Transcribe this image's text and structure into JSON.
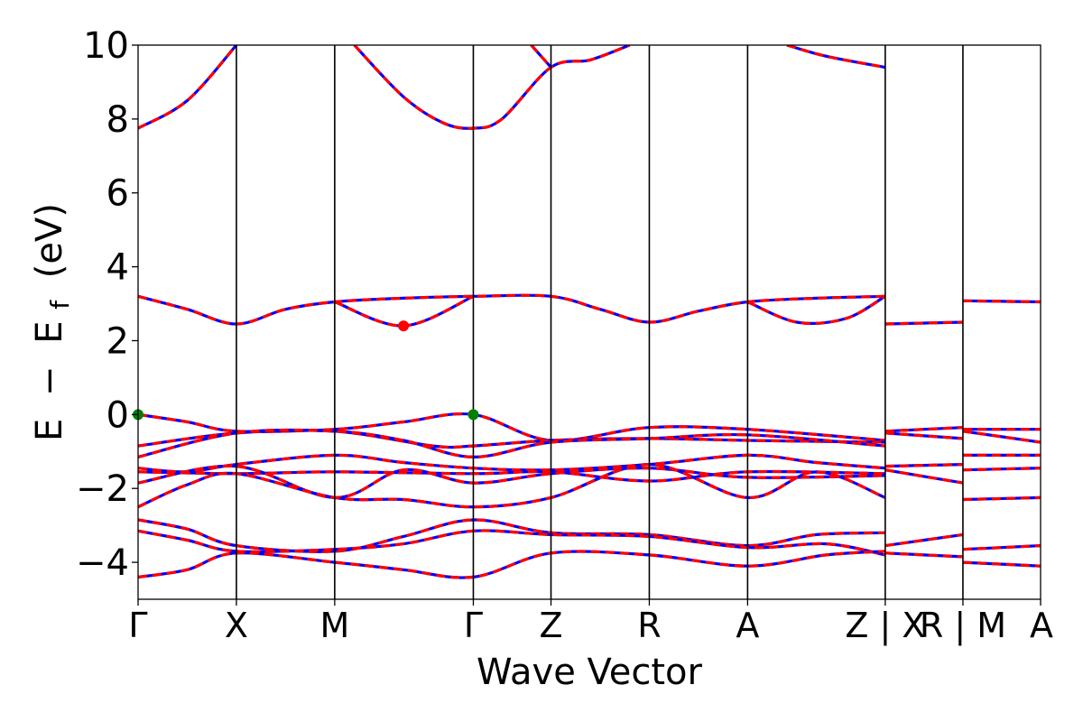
{
  "chart_data": {
    "type": "line",
    "title": "",
    "xlabel": "Wave Vector",
    "ylabel_parts": {
      "e": "E",
      "minus": "−",
      "ef_main": "E",
      "ef_sub": "f",
      "unit": "(eV)"
    },
    "ylim": [
      -5,
      10
    ],
    "yticks": [
      {
        "value": 10,
        "label": "10"
      },
      {
        "value": 8,
        "label": "8"
      },
      {
        "value": 6,
        "label": "6"
      },
      {
        "value": 4,
        "label": "4"
      },
      {
        "value": 2,
        "label": "2"
      },
      {
        "value": 0,
        "label": "0"
      },
      {
        "value": -2,
        "label": "−2"
      },
      {
        "value": -4,
        "label": "−4"
      }
    ],
    "kpoints": [
      {
        "label": "Γ",
        "x": 0
      },
      {
        "label": "X",
        "x": 1.0
      },
      {
        "label": "M",
        "x": 2.0
      },
      {
        "label": "Γ",
        "x": 3.41
      },
      {
        "label": "Z",
        "x": 4.2
      },
      {
        "label": "R",
        "x": 5.2
      },
      {
        "label": "A",
        "x": 6.2
      },
      {
        "label": "Z | X",
        "x": 7.6
      },
      {
        "label": "R | M",
        "x": 8.39
      },
      {
        "label": "A",
        "x": 9.18
      }
    ],
    "grid": false,
    "series_styles": [
      {
        "color": "#0000ff",
        "dashed": false
      },
      {
        "color": "#ff0000",
        "dashed": true
      }
    ],
    "markers": [
      {
        "x": 0.0,
        "y": 0.0,
        "color": "#008000"
      },
      {
        "x": 3.41,
        "y": 0.0,
        "color": "#008000"
      },
      {
        "x": 2.7,
        "y": 2.4,
        "color": "#ff0000"
      }
    ],
    "bands": [
      [
        [
          0,
          7.75
        ],
        [
          0.5,
          8.5
        ],
        [
          1.0,
          10.0
        ]
      ],
      [
        [
          2.2,
          10.0
        ],
        [
          2.7,
          8.6
        ],
        [
          3.1,
          7.9
        ],
        [
          3.41,
          7.75
        ],
        [
          3.7,
          8.0
        ],
        [
          4.2,
          9.4
        ],
        [
          4.6,
          9.6
        ],
        [
          5.0,
          10.0
        ]
      ],
      [
        [
          4.0,
          10.0
        ],
        [
          4.2,
          9.4
        ]
      ],
      [
        [
          6.6,
          10.0
        ],
        [
          7.0,
          9.7
        ],
        [
          7.6,
          9.4
        ]
      ],
      [
        [
          0,
          3.2
        ],
        [
          0.5,
          2.85
        ],
        [
          1.0,
          2.45
        ],
        [
          1.5,
          2.85
        ],
        [
          2.0,
          3.05
        ],
        [
          2.7,
          3.15
        ],
        [
          3.41,
          3.2
        ],
        [
          4.2,
          3.2
        ],
        [
          4.7,
          2.85
        ],
        [
          5.2,
          2.5
        ],
        [
          5.7,
          2.8
        ],
        [
          6.2,
          3.05
        ],
        [
          6.9,
          3.15
        ],
        [
          7.6,
          3.2
        ]
      ],
      [
        [
          2.0,
          3.05
        ],
        [
          2.7,
          2.4
        ],
        [
          3.41,
          3.2
        ]
      ],
      [
        [
          6.2,
          3.05
        ],
        [
          6.7,
          2.5
        ],
        [
          7.2,
          2.6
        ],
        [
          7.6,
          3.2
        ]
      ],
      [
        [
          7.6,
          2.45
        ],
        [
          8.39,
          2.5
        ]
      ],
      [
        [
          8.39,
          3.08
        ],
        [
          9.18,
          3.05
        ]
      ],
      [
        [
          0,
          0.0
        ],
        [
          0.5,
          -0.2
        ],
        [
          1.0,
          -0.45
        ],
        [
          2.0,
          -0.4
        ],
        [
          2.7,
          -0.2
        ],
        [
          3.41,
          0.0
        ],
        [
          4.2,
          -0.7
        ],
        [
          5.2,
          -0.35
        ],
        [
          6.2,
          -0.4
        ],
        [
          7.6,
          -0.7
        ]
      ],
      [
        [
          0,
          -0.85
        ],
        [
          1.0,
          -0.5
        ],
        [
          2.0,
          -0.45
        ],
        [
          3.0,
          -0.85
        ],
        [
          3.41,
          -0.85
        ],
        [
          4.2,
          -0.7
        ],
        [
          5.2,
          -0.65
        ],
        [
          6.2,
          -0.7
        ],
        [
          7.6,
          -0.75
        ]
      ],
      [
        [
          0,
          -1.15
        ],
        [
          1.0,
          -0.5
        ],
        [
          2.0,
          -0.45
        ],
        [
          2.7,
          -0.7
        ],
        [
          3.41,
          -1.15
        ],
        [
          4.2,
          -0.75
        ],
        [
          5.2,
          -0.65
        ],
        [
          6.2,
          -0.55
        ],
        [
          7.6,
          -0.85
        ]
      ],
      [
        [
          0,
          -1.45
        ],
        [
          0.5,
          -1.55
        ],
        [
          1.0,
          -1.35
        ],
        [
          2.0,
          -1.1
        ],
        [
          2.7,
          -1.3
        ],
        [
          3.41,
          -1.45
        ],
        [
          4.2,
          -1.5
        ],
        [
          5.2,
          -1.35
        ],
        [
          6.2,
          -1.1
        ],
        [
          6.9,
          -1.3
        ],
        [
          7.6,
          -1.45
        ]
      ],
      [
        [
          0,
          -1.55
        ],
        [
          1.0,
          -1.6
        ],
        [
          2.0,
          -1.55
        ],
        [
          3.41,
          -1.6
        ],
        [
          4.2,
          -1.55
        ],
        [
          5.2,
          -1.8
        ],
        [
          6.2,
          -1.55
        ],
        [
          7.6,
          -1.6
        ]
      ],
      [
        [
          0,
          -1.85
        ],
        [
          1.0,
          -1.4
        ],
        [
          2.0,
          -2.25
        ],
        [
          2.7,
          -1.5
        ],
        [
          3.41,
          -1.85
        ],
        [
          4.2,
          -1.6
        ],
        [
          5.2,
          -1.45
        ],
        [
          6.2,
          -1.7
        ],
        [
          7.6,
          -1.65
        ]
      ],
      [
        [
          0,
          -2.5
        ],
        [
          0.5,
          -1.9
        ],
        [
          1.0,
          -1.6
        ],
        [
          2.0,
          -2.25
        ],
        [
          2.7,
          -2.3
        ],
        [
          3.41,
          -2.5
        ],
        [
          4.2,
          -2.25
        ],
        [
          5.2,
          -1.35
        ],
        [
          6.2,
          -2.25
        ],
        [
          6.9,
          -1.55
        ],
        [
          7.6,
          -2.25
        ]
      ],
      [
        [
          0,
          -2.85
        ],
        [
          0.5,
          -3.1
        ],
        [
          1.0,
          -3.55
        ],
        [
          2.0,
          -3.7
        ],
        [
          2.7,
          -3.3
        ],
        [
          3.41,
          -2.85
        ],
        [
          4.2,
          -3.2
        ],
        [
          5.2,
          -3.25
        ],
        [
          6.2,
          -3.55
        ],
        [
          6.9,
          -3.25
        ],
        [
          7.6,
          -3.2
        ]
      ],
      [
        [
          0,
          -3.15
        ],
        [
          0.5,
          -3.4
        ],
        [
          1.0,
          -3.7
        ],
        [
          2.0,
          -3.65
        ],
        [
          2.7,
          -3.5
        ],
        [
          3.41,
          -3.15
        ],
        [
          4.2,
          -3.25
        ],
        [
          5.2,
          -3.3
        ],
        [
          6.2,
          -3.6
        ],
        [
          7.0,
          -3.5
        ],
        [
          7.6,
          -3.8
        ]
      ],
      [
        [
          0,
          -4.4
        ],
        [
          0.5,
          -4.2
        ],
        [
          1.0,
          -3.75
        ],
        [
          2.0,
          -4.0
        ],
        [
          2.7,
          -4.2
        ],
        [
          3.41,
          -4.4
        ],
        [
          4.2,
          -3.75
        ],
        [
          5.2,
          -3.8
        ],
        [
          6.2,
          -4.1
        ],
        [
          7.0,
          -3.8
        ],
        [
          7.6,
          -3.7
        ]
      ],
      [
        [
          7.6,
          -0.45
        ],
        [
          8.39,
          -0.35
        ]
      ],
      [
        [
          7.6,
          -0.5
        ],
        [
          8.39,
          -0.65
        ]
      ],
      [
        [
          7.6,
          -1.4
        ],
        [
          8.39,
          -1.35
        ]
      ],
      [
        [
          7.6,
          -1.5
        ],
        [
          8.39,
          -1.85
        ]
      ],
      [
        [
          7.6,
          -3.55
        ],
        [
          8.39,
          -3.25
        ]
      ],
      [
        [
          7.6,
          -3.75
        ],
        [
          8.39,
          -3.85
        ]
      ],
      [
        [
          8.39,
          -0.4
        ],
        [
          9.18,
          -0.4
        ]
      ],
      [
        [
          8.39,
          -0.45
        ],
        [
          9.18,
          -0.75
        ]
      ],
      [
        [
          8.39,
          -1.1
        ],
        [
          9.18,
          -1.1
        ]
      ],
      [
        [
          8.39,
          -1.5
        ],
        [
          9.18,
          -1.45
        ]
      ],
      [
        [
          8.39,
          -2.3
        ],
        [
          9.18,
          -2.25
        ]
      ],
      [
        [
          8.39,
          -3.65
        ],
        [
          9.18,
          -3.55
        ]
      ],
      [
        [
          8.39,
          -4.0
        ],
        [
          9.18,
          -4.1
        ]
      ]
    ]
  }
}
